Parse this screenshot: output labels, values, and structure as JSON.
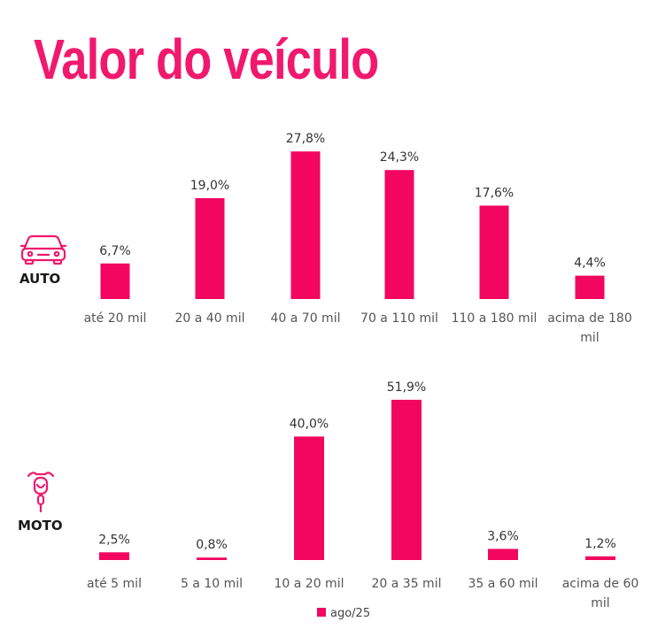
{
  "title": "Valor do veículo",
  "legend": {
    "label": "ago/25"
  },
  "colors": {
    "accent": "#f0196e",
    "bar": "#f2065f"
  },
  "chart_data": [
    {
      "type": "bar",
      "segment_label": "AUTO",
      "icon": "car-icon",
      "categories": [
        "até 20 mil",
        "20 a 40 mil",
        "40 a 70 mil",
        "70 a 110 mil",
        "110 a 180 mil",
        "acima de 180 mil"
      ],
      "category_lines": [
        [
          "até 20 mil"
        ],
        [
          "20 a 40 mil"
        ],
        [
          "40 a 70 mil"
        ],
        [
          "70 a 110 mil"
        ],
        [
          "110 a 180 mil"
        ],
        [
          "acima de 180",
          "mil"
        ]
      ],
      "series": [
        {
          "name": "ago/25",
          "values": [
            6.7,
            19.0,
            27.8,
            24.3,
            17.6,
            4.4
          ]
        }
      ],
      "value_labels": [
        "6,7%",
        "19,0%",
        "27,8%",
        "24,3%",
        "17,6%",
        "4,4%"
      ],
      "ylim": [
        0,
        30
      ]
    },
    {
      "type": "bar",
      "segment_label": "MOTO",
      "icon": "motorcycle-icon",
      "categories": [
        "até 5 mil",
        "5 a 10 mil",
        "10 a 20 mil",
        "20 a 35 mil",
        "35 a 60 mil",
        "acima de 60 mil"
      ],
      "category_lines": [
        [
          "até 5 mil"
        ],
        [
          "5 a 10 mil"
        ],
        [
          "10 a 20 mil"
        ],
        [
          "20 a 35 mil"
        ],
        [
          "35 a 60 mil"
        ],
        [
          "acima de 60",
          "mil"
        ]
      ],
      "series": [
        {
          "name": "ago/25",
          "values": [
            2.5,
            0.8,
            40.0,
            51.9,
            3.6,
            1.2
          ]
        }
      ],
      "value_labels": [
        "2,5%",
        "0,8%",
        "40,0%",
        "51,9%",
        "3,6%",
        "1,2%"
      ],
      "ylim": [
        0,
        55
      ]
    }
  ]
}
